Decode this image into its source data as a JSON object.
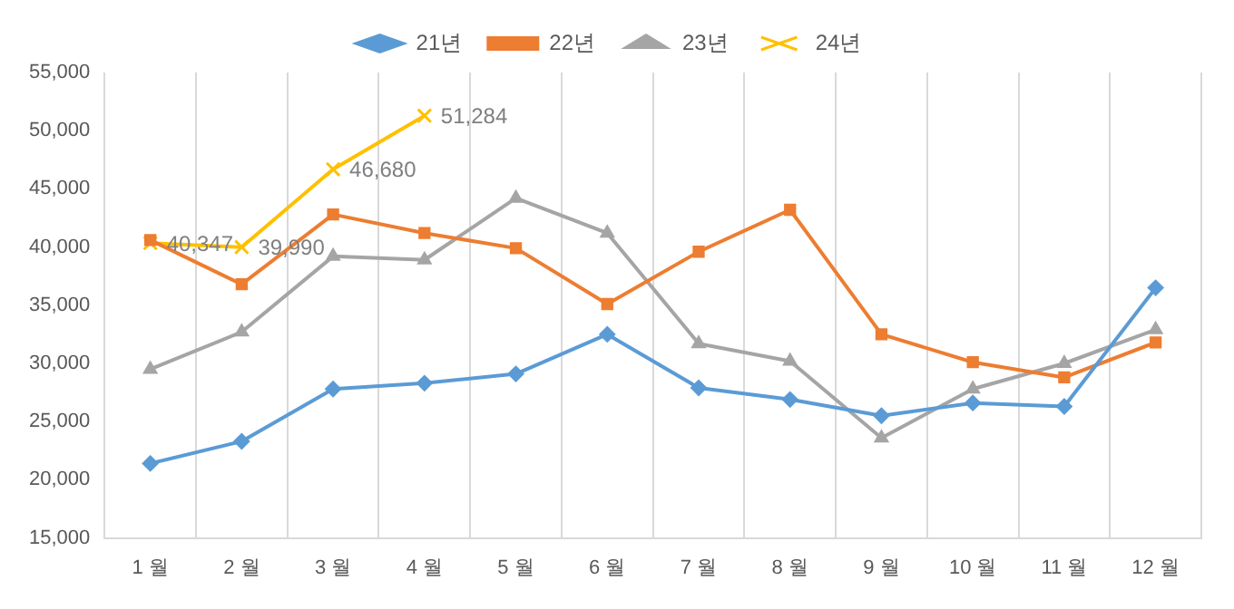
{
  "chart_data": {
    "type": "line",
    "categories": [
      "1 월",
      "2 월",
      "3 월",
      "4 월",
      "5 월",
      "6 월",
      "7 월",
      "8 월",
      "9 월",
      "10 월",
      "11 월",
      "12 월"
    ],
    "series": [
      {
        "name": "21년",
        "color": "#5b9bd5",
        "marker": "diamond",
        "values": [
          21400,
          23300,
          27800,
          28300,
          29100,
          32500,
          27900,
          26900,
          25500,
          26600,
          26300,
          36500
        ]
      },
      {
        "name": "22년",
        "color": "#ed7d31",
        "marker": "square",
        "values": [
          40600,
          36800,
          42800,
          41200,
          39900,
          35100,
          39600,
          43200,
          32500,
          30100,
          28800,
          31800
        ]
      },
      {
        "name": "23년",
        "color": "#a5a5a5",
        "marker": "triangle",
        "values": [
          29500,
          32700,
          39200,
          38900,
          44200,
          41200,
          31700,
          30200,
          23600,
          27800,
          30000,
          32900
        ]
      },
      {
        "name": "24년",
        "color": "#ffc000",
        "marker": "cross",
        "values": [
          40347,
          39990,
          46680,
          51284,
          null,
          null,
          null,
          null,
          null,
          null,
          null,
          null
        ],
        "value_labels": [
          "40,347",
          "39,990",
          "46,680",
          "51,284",
          null,
          null,
          null,
          null,
          null,
          null,
          null,
          null
        ]
      }
    ],
    "ylim": [
      15000,
      55000
    ],
    "yticks": [
      {
        "value": 15000,
        "label": "15,000"
      },
      {
        "value": 20000,
        "label": "20,000"
      },
      {
        "value": 25000,
        "label": "25,000"
      },
      {
        "value": 30000,
        "label": "30,000"
      },
      {
        "value": 35000,
        "label": "35,000"
      },
      {
        "value": 40000,
        "label": "40,000"
      },
      {
        "value": 45000,
        "label": "45,000"
      },
      {
        "value": 50000,
        "label": "50,000"
      },
      {
        "value": 55000,
        "label": "55,000"
      }
    ],
    "grid": "x",
    "legend": "top"
  }
}
